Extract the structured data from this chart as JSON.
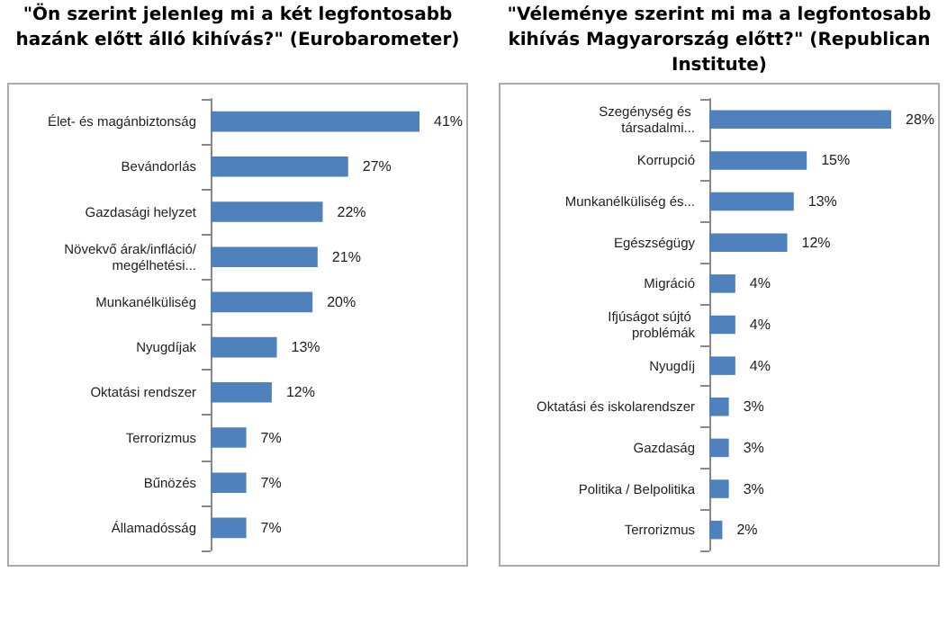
{
  "chart_data": [
    {
      "type": "bar",
      "orientation": "horizontal",
      "title": "\"Ön szerint jelenleg mi a két legfontosabb hazánk előtt álló kihívás?\" (Eurobarometer)",
      "categories": [
        "Élet- és magánbiztonság",
        "Bevándorlás",
        "Gazdasági helyzet",
        "Növekvő árak/infláció/megélhetési...",
        "Munkanélküliség",
        "Nyugdíjak",
        "Oktatási rendszer",
        "Terrorizmus",
        "Bűnözés",
        "Államadósság"
      ],
      "values": [
        41,
        27,
        22,
        21,
        20,
        13,
        12,
        7,
        7,
        7
      ],
      "value_labels": [
        "41%",
        "27%",
        "22%",
        "21%",
        "20%",
        "13%",
        "12%",
        "7%",
        "7%",
        "7%"
      ],
      "color": "#4f81bd",
      "tick_labels": "y"
    },
    {
      "type": "bar",
      "orientation": "horizontal",
      "title": "\"Véleménye szerint mi ma a legfontosabb kihívás Magyarország előtt?\" (Republican Institute)",
      "categories": [
        "Szegénység és társadalmi...",
        "Korrupció",
        "Munkanélküliség és...",
        "Egészségügy",
        "Migráció",
        "Ifjúságot sújtó problémák",
        "Nyugdíj",
        "Oktatási és iskolarendszer",
        "Gazdaság",
        "Politika / Belpolitika",
        "Terrorizmus"
      ],
      "values": [
        28,
        15,
        13,
        12,
        4,
        4,
        4,
        3,
        3,
        3,
        2
      ],
      "value_labels": [
        "28%",
        "15%",
        "13%",
        "12%",
        "4%",
        "4%",
        "4%",
        "3%",
        "3%",
        "3%",
        "2%"
      ],
      "color": "#4f81bd",
      "tick_labels": "y"
    }
  ]
}
